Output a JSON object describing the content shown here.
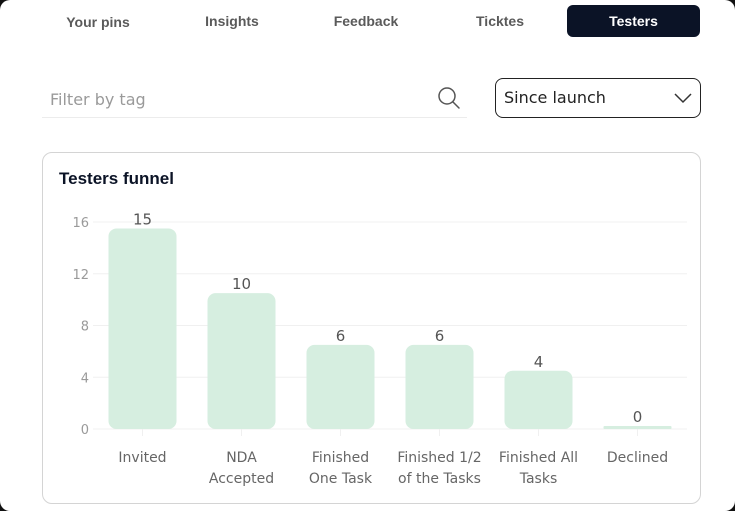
{
  "tabs": [
    {
      "label": "Your pins",
      "active": false
    },
    {
      "label": "Insights",
      "active": false
    },
    {
      "label": "Feedback",
      "active": false
    },
    {
      "label": "Ticktes",
      "active": false
    },
    {
      "label": "Testers",
      "active": true
    }
  ],
  "filter": {
    "placeholder": "Filter by tag",
    "value": "",
    "icon": "search-icon"
  },
  "period_select": {
    "selected": "Since launch",
    "icon": "chevron-down-icon"
  },
  "card": {
    "title": "Testers funnel"
  },
  "colors": {
    "bar": "#d6eee0",
    "active_tab": "#0b1326",
    "grid": "#f0f0f0"
  },
  "chart_data": {
    "type": "bar",
    "title": "Testers funnel",
    "categories": [
      "Invited",
      "NDA Accepted",
      "Finished One Task",
      "Finished 1/2 of the Tasks",
      "Finished All Tasks",
      "Declined"
    ],
    "category_lines": [
      [
        "Invited"
      ],
      [
        "NDA",
        "Accepted"
      ],
      [
        "Finished",
        "One Task"
      ],
      [
        "Finished 1/2",
        "of the Tasks"
      ],
      [
        "Finished All",
        "Tasks"
      ],
      [
        "Declined"
      ]
    ],
    "values": [
      15,
      10,
      6,
      6,
      4,
      0
    ],
    "xlabel": "",
    "ylabel": "",
    "ylim": [
      0,
      16
    ],
    "yticks": [
      0,
      4,
      8,
      12,
      16
    ],
    "grid": true,
    "data_labels": true,
    "legend": "none"
  }
}
